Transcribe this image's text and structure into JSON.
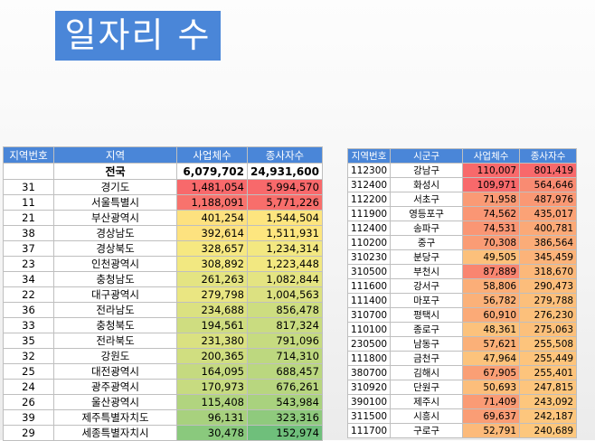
{
  "title": "일자리 수",
  "left_table": {
    "headers": [
      "지역번호",
      "지역",
      "사업체수",
      "종사자수"
    ],
    "total": {
      "code": "",
      "name": "전국",
      "biz": "6,079,702",
      "emp": "24,931,600"
    },
    "rows": [
      {
        "code": "31",
        "name": "경기도",
        "biz": "1,481,054",
        "emp": "5,994,570",
        "bc": "#f8696b",
        "ec": "#f8696b"
      },
      {
        "code": "11",
        "name": "서울특별시",
        "biz": "1,188,091",
        "emp": "5,771,226",
        "bc": "#f8736d",
        "ec": "#f86e6b"
      },
      {
        "code": "21",
        "name": "부산광역시",
        "biz": "401,254",
        "emp": "1,544,504",
        "bc": "#fde17f",
        "ec": "#fde57f"
      },
      {
        "code": "38",
        "name": "경상남도",
        "biz": "392,614",
        "emp": "1,511,931",
        "bc": "#fde27f",
        "ec": "#fde67f"
      },
      {
        "code": "37",
        "name": "경상북도",
        "biz": "328,657",
        "emp": "1,234,314",
        "bc": "#f6e881",
        "ec": "#f3e881"
      },
      {
        "code": "23",
        "name": "인천광역시",
        "biz": "308,892",
        "emp": "1,223,448",
        "bc": "#f2e881",
        "ec": "#f2e881"
      },
      {
        "code": "34",
        "name": "충청남도",
        "biz": "261,263",
        "emp": "1,082,844",
        "bc": "#e4e482",
        "ec": "#e4e482"
      },
      {
        "code": "22",
        "name": "대구광역시",
        "biz": "279,798",
        "emp": "1,004,563",
        "bc": "#eae682",
        "ec": "#dce181"
      },
      {
        "code": "36",
        "name": "전라남도",
        "biz": "234,688",
        "emp": "856,478",
        "bc": "#dbe181",
        "ec": "#cddd80"
      },
      {
        "code": "33",
        "name": "충청북도",
        "biz": "194,561",
        "emp": "817,324",
        "bc": "#cfdd80",
        "ec": "#c9dc80"
      },
      {
        "code": "35",
        "name": "전라북도",
        "biz": "231,380",
        "emp": "791,096",
        "bc": "#dae181",
        "ec": "#c6db80"
      },
      {
        "code": "32",
        "name": "강원도",
        "biz": "200,365",
        "emp": "714,310",
        "bc": "#d0de80",
        "ec": "#bdd87f"
      },
      {
        "code": "25",
        "name": "대전광역시",
        "biz": "164,095",
        "emp": "688,457",
        "bc": "#c5da80",
        "ec": "#bad77f"
      },
      {
        "code": "24",
        "name": "광주광역시",
        "biz": "170,973",
        "emp": "676,261",
        "bc": "#c7db80",
        "ec": "#b8d67f"
      },
      {
        "code": "26",
        "name": "울산광역시",
        "biz": "115,408",
        "emp": "543,984",
        "bc": "#b1d47f",
        "ec": "#a9d27e"
      },
      {
        "code": "39",
        "name": "제주특별자치도",
        "biz": "96,131",
        "emp": "323,316",
        "bc": "#a8d17e",
        "ec": "#8fca7d"
      },
      {
        "code": "29",
        "name": "세종특별자치시",
        "biz": "30,478",
        "emp": "152,974",
        "bc": "#8ac97d",
        "ec": "#6fbf7b"
      }
    ]
  },
  "right_table": {
    "headers": [
      "지역번호",
      "시군구",
      "사업체수",
      "종사자수"
    ],
    "rows": [
      {
        "code": "112300",
        "name": "강남구",
        "biz": "110,007",
        "emp": "801,419",
        "bc": "#f8696b",
        "ec": "#f8696b"
      },
      {
        "code": "312400",
        "name": "화성시",
        "biz": "109,971",
        "emp": "564,646",
        "bc": "#f8696b",
        "ec": "#f98b72"
      },
      {
        "code": "112200",
        "name": "서초구",
        "biz": "71,958",
        "emp": "487,976",
        "bc": "#fa9a75",
        "ec": "#fa9874"
      },
      {
        "code": "111900",
        "name": "영등포구",
        "biz": "74,562",
        "emp": "435,017",
        "bc": "#fa9674",
        "ec": "#fba276"
      },
      {
        "code": "112400",
        "name": "송파구",
        "biz": "74,531",
        "emp": "400,781",
        "bc": "#fa9674",
        "ec": "#fba977"
      },
      {
        "code": "110200",
        "name": "중구",
        "biz": "70,308",
        "emp": "386,564",
        "bc": "#fa9c75",
        "ec": "#fbac78"
      },
      {
        "code": "310230",
        "name": "분당구",
        "biz": "49,505",
        "emp": "345,459",
        "bc": "#fcc07b",
        "ec": "#fcb379"
      },
      {
        "code": "310500",
        "name": "부천시",
        "biz": "87,889",
        "emp": "318,670",
        "bc": "#f98570",
        "ec": "#fcb87a"
      },
      {
        "code": "111600",
        "name": "강서구",
        "biz": "58,806",
        "emp": "290,473",
        "bc": "#fbae78",
        "ec": "#fcbd7b"
      },
      {
        "code": "111400",
        "name": "마포구",
        "biz": "56,782",
        "emp": "279,788",
        "bc": "#fbb179",
        "ec": "#fcbf7b"
      },
      {
        "code": "310700",
        "name": "평택시",
        "biz": "60,910",
        "emp": "276,230",
        "bc": "#fbaa77",
        "ec": "#fcc07b"
      },
      {
        "code": "110100",
        "name": "종로구",
        "biz": "48,361",
        "emp": "275,063",
        "bc": "#fcc27c",
        "ec": "#fcc07b"
      },
      {
        "code": "230500",
        "name": "남동구",
        "biz": "57,621",
        "emp": "255,508",
        "bc": "#fbb078",
        "ec": "#fdc47c"
      },
      {
        "code": "111800",
        "name": "금천구",
        "biz": "47,964",
        "emp": "255,449",
        "bc": "#fcc37c",
        "ec": "#fdc47c"
      },
      {
        "code": "380700",
        "name": "김해시",
        "biz": "67,905",
        "emp": "255,401",
        "bc": "#fa9f75",
        "ec": "#fdc47c"
      },
      {
        "code": "310920",
        "name": "단원구",
        "biz": "50,693",
        "emp": "247,815",
        "bc": "#fcbe7b",
        "ec": "#fdc57d"
      },
      {
        "code": "390100",
        "name": "제주시",
        "biz": "71,409",
        "emp": "243,092",
        "bc": "#fa9b75",
        "ec": "#fdc67d"
      },
      {
        "code": "311500",
        "name": "시흥시",
        "biz": "69,637",
        "emp": "242,187",
        "bc": "#fa9d75",
        "ec": "#fdc67d"
      },
      {
        "code": "111700",
        "name": "구로구",
        "biz": "52,791",
        "emp": "240,689",
        "bc": "#fcba7a",
        "ec": "#fdc77d"
      }
    ]
  }
}
